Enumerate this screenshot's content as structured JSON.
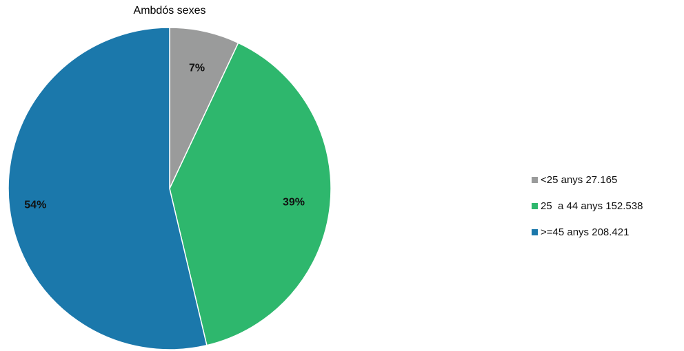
{
  "chart_data": {
    "type": "pie",
    "title": "Ambdós sexes",
    "slices": [
      {
        "legend_label": "<25 anys 27.165",
        "value": 27165,
        "percent_label": "7%",
        "color": "#9a9b9b"
      },
      {
        "legend_label": "25  a 44 anys 152.538",
        "value": 152538,
        "percent_label": "39%",
        "color": "#2eb76d"
      },
      {
        "legend_label": ">=45 anys 208.421",
        "value": 208421,
        "percent_label": "54%",
        "color": "#1b78ab"
      }
    ],
    "start_angle_deg": 0,
    "direction": "clockwise",
    "legend_position": "right"
  }
}
